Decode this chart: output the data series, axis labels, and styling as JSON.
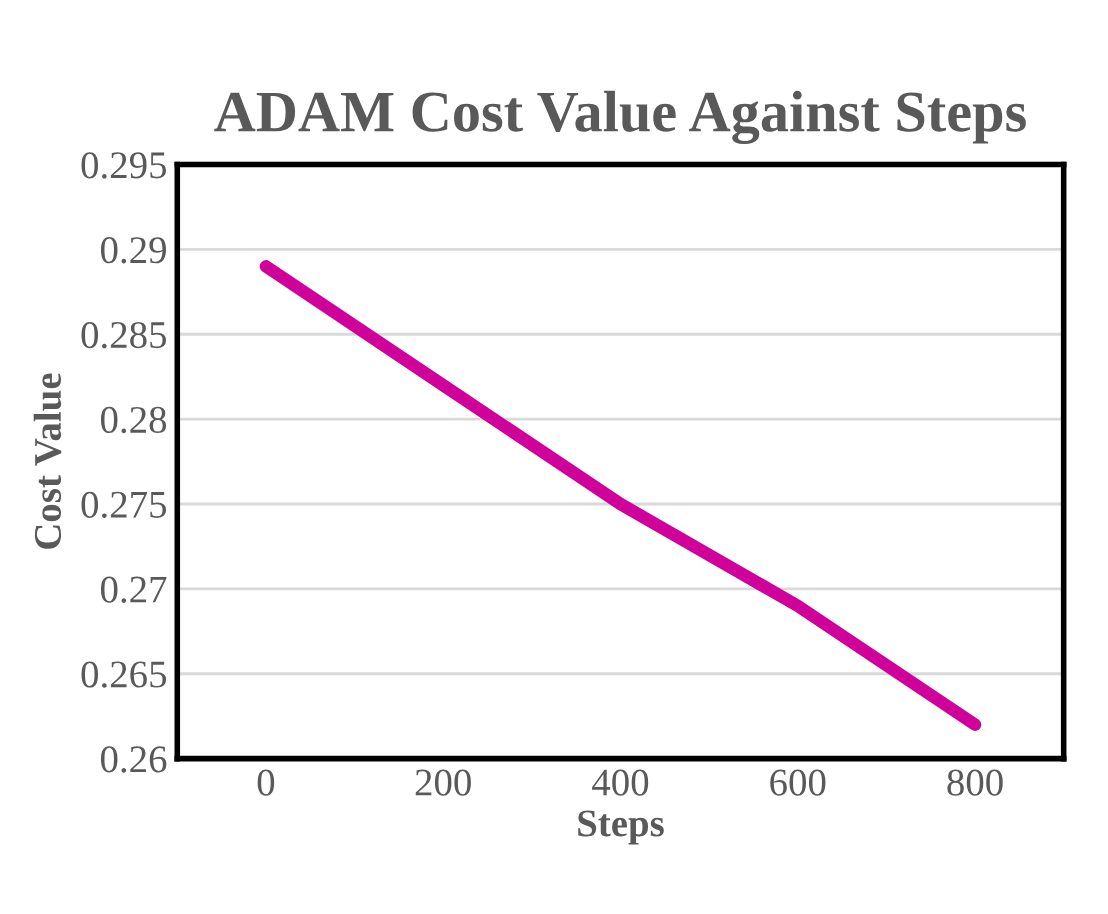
{
  "chart_data": {
    "type": "line",
    "title": "ADAM Cost Value Against Steps",
    "xlabel": "Steps",
    "ylabel": "Cost Value",
    "x": [
      0,
      200,
      400,
      600,
      800
    ],
    "series": [
      {
        "color": "#d0009a",
        "values": [
          0.289,
          0.282,
          0.275,
          0.269,
          0.262
        ]
      }
    ],
    "xlim": [
      -100,
      900
    ],
    "xticks": [
      0,
      200,
      400,
      600,
      800
    ],
    "ylim": [
      0.26,
      0.295
    ],
    "yticks": [
      0.26,
      0.265,
      0.27,
      0.275,
      0.28,
      0.285,
      0.29,
      0.295
    ],
    "grid": "y",
    "line_style": "solid",
    "marker": "none"
  }
}
